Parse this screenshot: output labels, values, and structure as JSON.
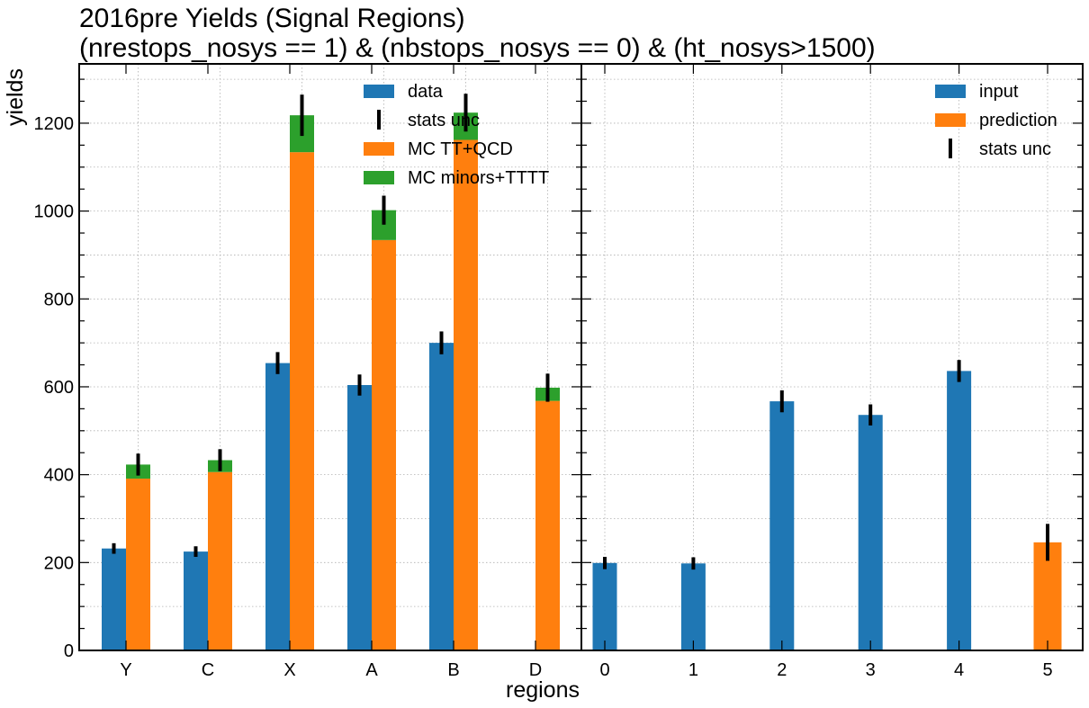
{
  "chart_data": [
    {
      "type": "bar",
      "title": "2016pre Yields (Signal Regions)",
      "subtitle": "(nrestops_nosys == 1) & (nbstops_nosys == 0) & (ht_nosys>1500)",
      "xlabel": "regions",
      "ylabel": "yields",
      "ylim": [
        0,
        1335
      ],
      "yticks": [
        0,
        200,
        400,
        600,
        800,
        1000,
        1200
      ],
      "grid": true,
      "legend_position": "top-right",
      "categories": [
        "Y",
        "C",
        "X",
        "A",
        "B",
        "D"
      ],
      "series": [
        {
          "name": "data",
          "color": "#1f77b4",
          "values": [
            232,
            225,
            654,
            604,
            700,
            null
          ],
          "errors": [
            12,
            12,
            25,
            24,
            26,
            null
          ]
        },
        {
          "name": "MC TT+QCD",
          "color": "#ff7f0e",
          "values": [
            391,
            406,
            1134,
            934,
            1162,
            568
          ]
        },
        {
          "name": "MC minors+TTTT",
          "color": "#2ca02c",
          "stack_on": "MC TT+QCD",
          "values": [
            32,
            27,
            84,
            68,
            62,
            30
          ],
          "errors_on_total": [
            25,
            25,
            47,
            33,
            43,
            32
          ]
        }
      ],
      "error_series_name": "stats unc"
    },
    {
      "type": "bar",
      "ylim": [
        0,
        1335
      ],
      "grid": true,
      "legend_position": "top-right",
      "categories": [
        "0",
        "1",
        "2",
        "3",
        "4",
        "5"
      ],
      "series": [
        {
          "name": "input",
          "color": "#1f77b4",
          "values": [
            199,
            198,
            567,
            536,
            636,
            null
          ],
          "errors": [
            14,
            14,
            25,
            24,
            25,
            null
          ]
        },
        {
          "name": "prediction",
          "color": "#ff7f0e",
          "values": [
            null,
            null,
            null,
            null,
            null,
            246
          ],
          "errors": [
            null,
            null,
            null,
            null,
            null,
            42
          ]
        }
      ],
      "error_series_name": "stats unc"
    }
  ]
}
